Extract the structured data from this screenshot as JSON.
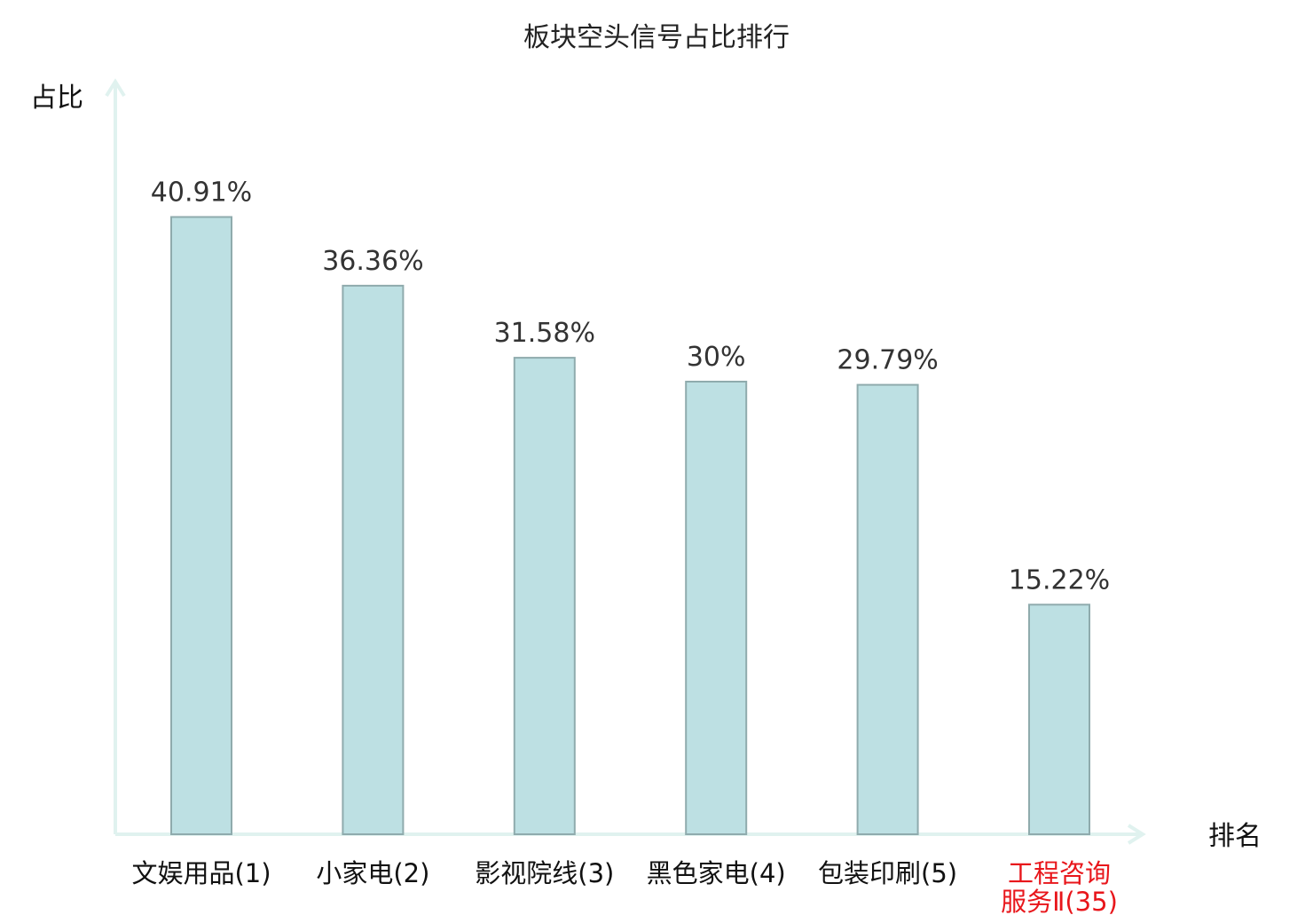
{
  "chart_data": {
    "type": "bar",
    "title": "板块空头信号占比排行",
    "ylabel": "占比",
    "xlabel": "排名",
    "ylim": [
      0,
      50
    ],
    "grid": false,
    "categories": [
      {
        "lines": [
          "文娱用品(1)"
        ],
        "highlight": false
      },
      {
        "lines": [
          "小家电(2)"
        ],
        "highlight": false
      },
      {
        "lines": [
          "影视院线(3)"
        ],
        "highlight": false
      },
      {
        "lines": [
          "黑色家电(4)"
        ],
        "highlight": false
      },
      {
        "lines": [
          "包装印刷(5)"
        ],
        "highlight": false
      },
      {
        "lines": [
          "工程咨询",
          "服务Ⅱ(35)"
        ],
        "highlight": true
      }
    ],
    "values": [
      40.91,
      36.36,
      31.58,
      30,
      29.79,
      15.22
    ],
    "value_labels": [
      "40.91%",
      "36.36%",
      "31.58%",
      "30%",
      "29.79%",
      "15.22%"
    ],
    "colors": {
      "bar_fill": "#bde0e3",
      "bar_stroke": "#8fabad",
      "axis": "#e0f2ef",
      "label_normal": "#111111",
      "label_highlight": "#e8161b"
    }
  }
}
